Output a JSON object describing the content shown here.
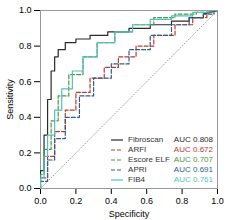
{
  "chart_data": {
    "type": "line",
    "xlabel": "Specificity",
    "ylabel": "Sensitivity",
    "xlim": [
      0.0,
      1.0
    ],
    "ylim": [
      0.0,
      1.0
    ],
    "xticks": [
      {
        "value": 0,
        "label": "0.0"
      },
      0.2,
      0.4,
      0.6,
      0.8,
      {
        "value": 1,
        "label": "1.0"
      }
    ],
    "yticks": [
      {
        "value": 0,
        "label": "0.0"
      },
      0.2,
      0.4,
      0.6,
      0.8,
      {
        "value": 1,
        "label": "1.0"
      }
    ],
    "grid": false,
    "legend": "lower right",
    "annotations": [
      {
        "text": "AUC 0.808",
        "color": "#2d2a27"
      },
      {
        "text": "AUC 0.672",
        "color": "#c0392b"
      },
      {
        "text": "AUC 0.707",
        "color": "#4a9940"
      },
      {
        "text": "AUC 0.691",
        "color": "#2c5f8a"
      },
      {
        "text": "AUC 0.761",
        "color": "#55bfbf"
      }
    ],
    "series": [
      {
        "name": "Fibroscan",
        "color": "#2d2a27",
        "line_style": "solid",
        "x": [
          0.0,
          0.0,
          0.02,
          0.02,
          0.04,
          0.04,
          0.06,
          0.06,
          0.08,
          0.08,
          0.1,
          0.1,
          0.14,
          0.14,
          0.2,
          0.2,
          0.28,
          0.28,
          0.38,
          0.38,
          0.5,
          0.5,
          0.62,
          0.62,
          0.74,
          0.74,
          0.84,
          0.84,
          0.92,
          0.92,
          1.0
        ],
        "values": [
          0.0,
          0.1,
          0.1,
          0.3,
          0.3,
          0.5,
          0.5,
          0.66,
          0.66,
          0.74,
          0.74,
          0.78,
          0.78,
          0.82,
          0.82,
          0.84,
          0.84,
          0.86,
          0.86,
          0.88,
          0.88,
          0.9,
          0.9,
          0.92,
          0.92,
          0.94,
          0.94,
          0.96,
          0.96,
          0.98,
          1.0
        ]
      },
      {
        "name": "ARFI",
        "color": "#c0392b",
        "line_style": "dashed",
        "x": [
          0.0,
          0.0,
          0.04,
          0.04,
          0.08,
          0.08,
          0.14,
          0.14,
          0.2,
          0.2,
          0.28,
          0.28,
          0.36,
          0.36,
          0.44,
          0.44,
          0.54,
          0.54,
          0.64,
          0.64,
          0.76,
          0.76,
          0.86,
          0.86,
          0.94,
          0.94,
          1.0
        ],
        "values": [
          0.0,
          0.06,
          0.06,
          0.18,
          0.18,
          0.32,
          0.32,
          0.44,
          0.44,
          0.54,
          0.54,
          0.62,
          0.62,
          0.68,
          0.68,
          0.74,
          0.74,
          0.8,
          0.8,
          0.86,
          0.86,
          0.92,
          0.92,
          0.96,
          0.96,
          0.99,
          1.0
        ]
      },
      {
        "name": "Escore ELF",
        "color": "#4a9940",
        "line_style": "dashed",
        "x": [
          0.0,
          0.0,
          0.02,
          0.02,
          0.06,
          0.06,
          0.1,
          0.1,
          0.16,
          0.16,
          0.24,
          0.24,
          0.32,
          0.32,
          0.42,
          0.42,
          0.52,
          0.52,
          0.64,
          0.64,
          0.76,
          0.76,
          0.88,
          0.88,
          0.96,
          0.96,
          1.0
        ],
        "values": [
          0.0,
          0.08,
          0.08,
          0.22,
          0.22,
          0.38,
          0.38,
          0.52,
          0.52,
          0.64,
          0.64,
          0.74,
          0.74,
          0.82,
          0.82,
          0.88,
          0.88,
          0.92,
          0.92,
          0.96,
          0.96,
          0.98,
          0.98,
          0.99,
          0.99,
          1.0,
          1.0
        ]
      },
      {
        "name": "APRI",
        "color": "#2c5f8a",
        "line_style": "dashed",
        "x": [
          0.0,
          0.0,
          0.04,
          0.04,
          0.08,
          0.08,
          0.14,
          0.14,
          0.22,
          0.22,
          0.3,
          0.3,
          0.4,
          0.4,
          0.5,
          0.5,
          0.62,
          0.62,
          0.74,
          0.74,
          0.84,
          0.84,
          0.92,
          0.92,
          0.98,
          0.98,
          1.0
        ],
        "values": [
          0.0,
          0.04,
          0.04,
          0.16,
          0.16,
          0.28,
          0.28,
          0.4,
          0.4,
          0.52,
          0.52,
          0.62,
          0.62,
          0.7,
          0.7,
          0.78,
          0.78,
          0.86,
          0.86,
          0.92,
          0.92,
          0.96,
          0.96,
          0.98,
          0.98,
          1.0,
          1.0
        ]
      },
      {
        "name": "FIB4",
        "color": "#55bfbf",
        "line_style": "solid",
        "x": [
          0.0,
          0.0,
          0.02,
          0.02,
          0.04,
          0.04,
          0.08,
          0.08,
          0.12,
          0.12,
          0.18,
          0.18,
          0.24,
          0.24,
          0.32,
          0.32,
          0.42,
          0.42,
          0.52,
          0.52,
          0.62,
          0.62,
          0.74,
          0.74,
          0.86,
          0.86,
          0.94,
          0.94,
          1.0
        ],
        "values": [
          0.0,
          0.06,
          0.06,
          0.18,
          0.18,
          0.3,
          0.3,
          0.44,
          0.44,
          0.56,
          0.56,
          0.66,
          0.66,
          0.74,
          0.74,
          0.82,
          0.82,
          0.88,
          0.88,
          0.92,
          0.92,
          0.95,
          0.95,
          0.97,
          0.97,
          0.99,
          0.99,
          1.0,
          1.0
        ]
      }
    ]
  }
}
